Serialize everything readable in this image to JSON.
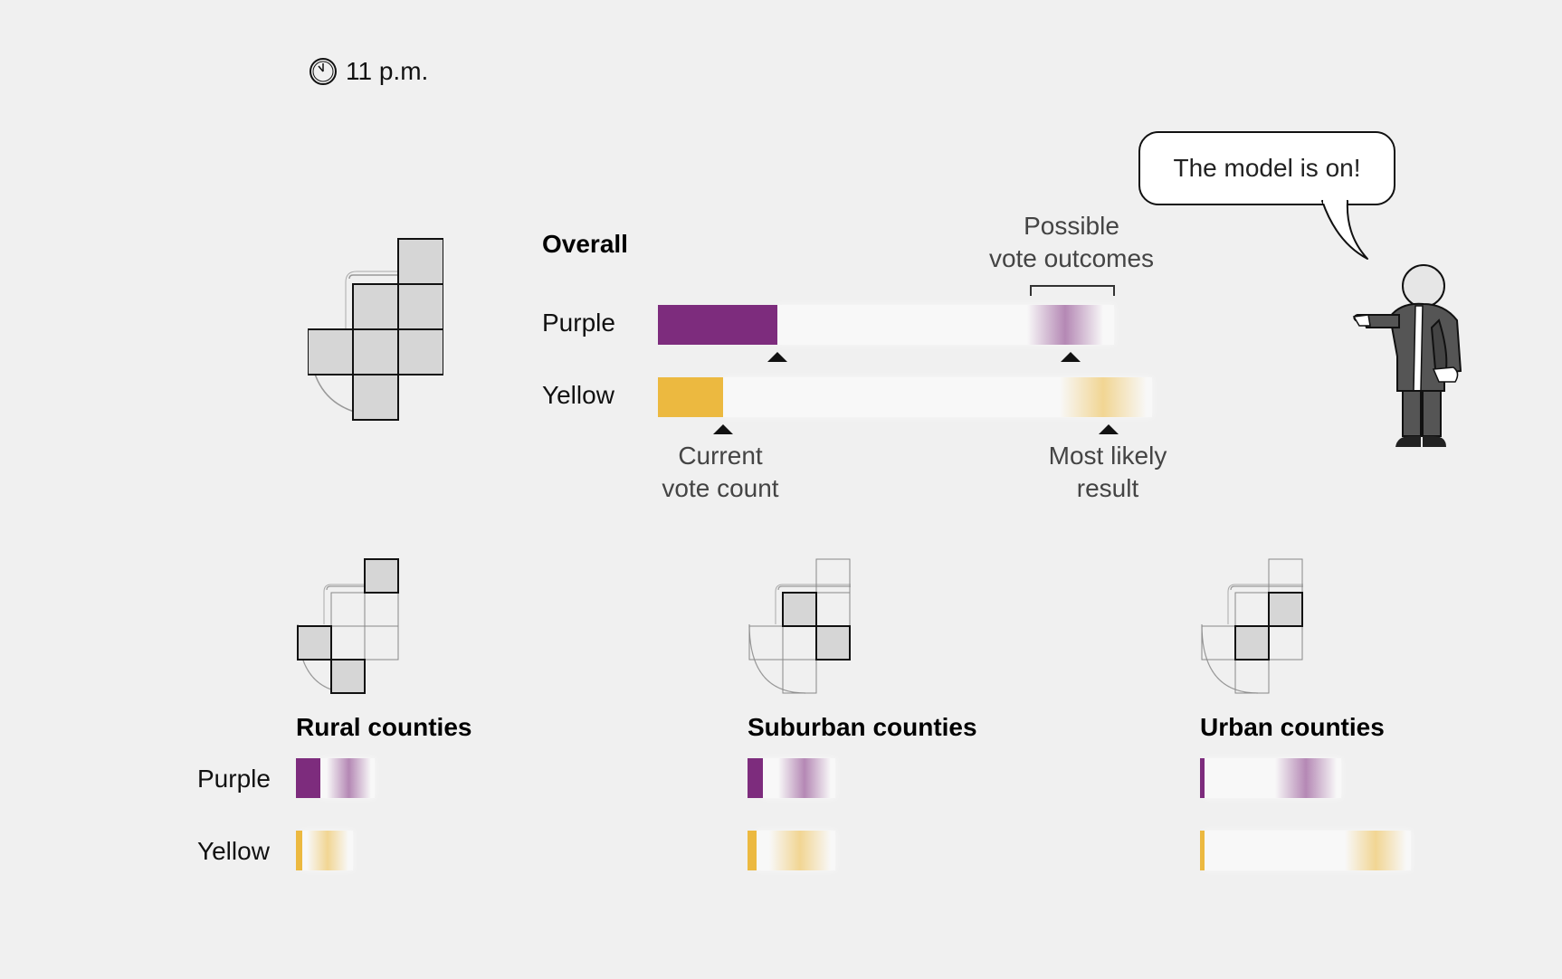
{
  "timestamp": "11 p.m.",
  "speech": "The model is on!",
  "colors": {
    "purple": "#7d2c7d",
    "yellow": "#ecb940",
    "track": "#f8f8f8",
    "background": "#f0f0f0"
  },
  "annotations": {
    "possible_outcomes_line1": "Possible",
    "possible_outcomes_line2": "vote outcomes",
    "current_count_line1": "Current",
    "current_count_line2": "vote count",
    "most_likely_line1": "Most likely",
    "most_likely_line2": "result"
  },
  "chart_data": [
    {
      "type": "bar",
      "title": "Overall",
      "series": [
        {
          "name": "Purple",
          "current": 0.22,
          "range": [
            0.68,
            0.82
          ],
          "most_likely": 0.76,
          "track_end": 0.84
        },
        {
          "name": "Yellow",
          "current": 0.12,
          "range": [
            0.74,
            0.9
          ],
          "most_likely": 0.83,
          "track_end": 0.91
        }
      ]
    },
    {
      "type": "bar",
      "title": "Rural counties",
      "series": [
        {
          "name": "Purple",
          "current": 0.11,
          "range": [
            0.14,
            0.34
          ],
          "track_end": 0.36
        },
        {
          "name": "Yellow",
          "current": 0.03,
          "range": [
            0.05,
            0.24
          ],
          "track_end": 0.26
        }
      ]
    },
    {
      "type": "bar",
      "title": "Suburban counties",
      "series": [
        {
          "name": "Purple",
          "current": 0.07,
          "range": [
            0.14,
            0.38
          ],
          "track_end": 0.4
        },
        {
          "name": "Yellow",
          "current": 0.04,
          "range": [
            0.1,
            0.38
          ],
          "track_end": 0.4
        }
      ]
    },
    {
      "type": "bar",
      "title": "Urban counties",
      "series": [
        {
          "name": "Purple",
          "current": 0.02,
          "range": [
            0.34,
            0.62
          ],
          "track_end": 0.64
        },
        {
          "name": "Yellow",
          "current": 0.02,
          "range": [
            0.66,
            0.94
          ],
          "track_end": 0.96
        }
      ]
    }
  ]
}
